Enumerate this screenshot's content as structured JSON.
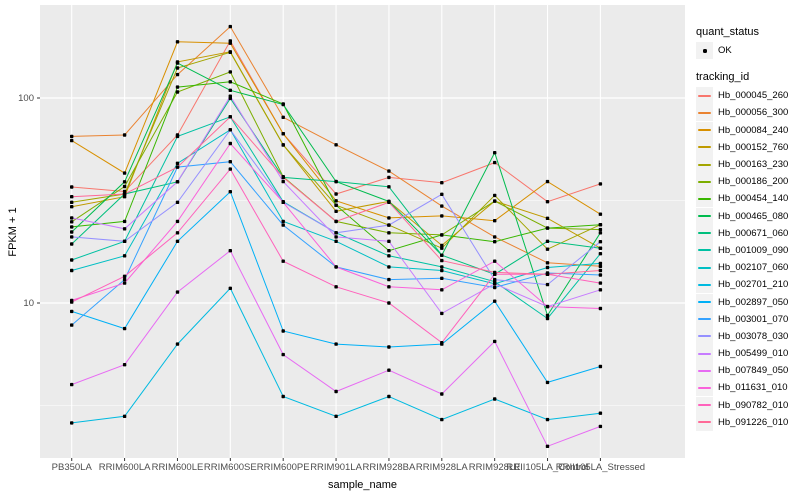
{
  "chart_data": {
    "type": "line",
    "title": "",
    "xlabel": "sample_name",
    "ylabel": "FPKM + 1",
    "y_scale": "log10",
    "y_ticks": [
      100,
      10
    ],
    "y_minor_ticks": [
      31.62,
      3.162
    ],
    "ylim": [
      1.75,
      284
    ],
    "grid": "on",
    "legend_position": "right",
    "categories": [
      "PB350LA",
      "RRIM600LA",
      "RRIM600LE",
      "RRIM600SE",
      "RRIM600PE",
      "RRIM901LA",
      "RRIM928BA",
      "RRIM928LA",
      "RRIM928LE",
      "RRII105LA_Control",
      "RRII105LA_Stressed"
    ],
    "series": [
      {
        "name": "Hb_000045_260",
        "color": "#F8766D",
        "values": [
          36.8,
          35,
          66,
          190,
          67,
          34,
          41,
          38.6,
          48.4,
          31.2,
          38.1
        ]
      },
      {
        "name": "Hb_000056_300",
        "color": "#EA8331",
        "values": [
          65,
          66,
          130,
          223,
          80.5,
          59.1,
          44,
          29.7,
          21,
          15.7,
          15.1
        ]
      },
      {
        "name": "Hb_000084_240",
        "color": "#D89000",
        "values": [
          62,
          43,
          188,
          185,
          67,
          31.5,
          26,
          26.6,
          25.2,
          39.1,
          27.1
        ]
      },
      {
        "name": "Hb_000152_760",
        "color": "#C09B00",
        "values": [
          29.5,
          33,
          150,
          168,
          59.1,
          28,
          31.3,
          19.1,
          31.4,
          25.9,
          18.5
        ]
      },
      {
        "name": "Hb_000163_230",
        "color": "#A3A500",
        "values": [
          31,
          34,
          140,
          167,
          59,
          30,
          24,
          18.5,
          33.5,
          18.3,
          24.1
        ]
      },
      {
        "name": "Hb_000186_200",
        "color": "#7CAE00",
        "values": [
          24.9,
          37,
          107,
          134,
          41.3,
          25,
          22,
          21.5,
          31.4,
          23.2,
          22.8
        ]
      },
      {
        "name": "Hb_000454_140",
        "color": "#39B600",
        "values": [
          23.5,
          25,
          113,
          120,
          93.5,
          30,
          18,
          21.5,
          19.9,
          23.2,
          24.1
        ]
      },
      {
        "name": "Hb_000465_080",
        "color": "#00BB4E",
        "values": [
          22.2,
          39,
          148,
          109,
          93,
          39.1,
          31.3,
          17.1,
          54.1,
          8.7,
          22
        ]
      },
      {
        "name": "Hb_000671_060",
        "color": "#00BF7D",
        "values": [
          19.4,
          34,
          39,
          99.6,
          41,
          39.1,
          36.9,
          17.1,
          13.8,
          20,
          18.5
        ]
      },
      {
        "name": "Hb_001009_090",
        "color": "#00C1A3",
        "values": [
          16.2,
          20,
          65,
          81,
          31.2,
          22,
          17,
          15,
          12.7,
          8.4,
          17.4
        ]
      },
      {
        "name": "Hb_002107_060",
        "color": "#00BFC4",
        "values": [
          14.4,
          17,
          48,
          70,
          25,
          20,
          15,
          14.4,
          12.4,
          14.9,
          15.6
        ]
      },
      {
        "name": "Hb_002701_210",
        "color": "#00BAE0",
        "values": [
          2.6,
          2.8,
          6.3,
          11.8,
          3.5,
          2.8,
          3.5,
          2.7,
          3.4,
          2.7,
          2.9
        ]
      },
      {
        "name": "Hb_002897_050",
        "color": "#00B0F6",
        "values": [
          9.1,
          7.5,
          20,
          34.9,
          7.3,
          6.3,
          6.1,
          6.3,
          10.2,
          4.1,
          4.9
        ]
      },
      {
        "name": "Hb_003001_070",
        "color": "#35A2FF",
        "values": [
          7.8,
          13,
          46,
          48.9,
          24,
          15,
          13,
          13.2,
          11.9,
          14,
          13.7
        ]
      },
      {
        "name": "Hb_003078_030",
        "color": "#9590FF",
        "values": [
          21,
          20,
          31,
          70,
          31,
          22,
          24,
          33.9,
          13,
          12.3,
          19.9
        ]
      },
      {
        "name": "Hb_005499_010",
        "color": "#C77CFF",
        "values": [
          26,
          23,
          39,
          102,
          39.1,
          21,
          20,
          8.9,
          12.4,
          9.6,
          11.6
        ]
      },
      {
        "name": "Hb_007849_050",
        "color": "#E76BF3",
        "values": [
          4.0,
          5.0,
          11.3,
          18.0,
          5.6,
          3.7,
          4.7,
          3.6,
          6.5,
          2.0,
          2.5
        ]
      },
      {
        "name": "Hb_011631_010",
        "color": "#FA62DB",
        "values": [
          10.3,
          12.5,
          25,
          60,
          31,
          15,
          12,
          11.6,
          16,
          9.6,
          9.4
        ]
      },
      {
        "name": "Hb_090782_010",
        "color": "#FF62BC",
        "values": [
          10.1,
          13.5,
          22,
          45,
          16,
          12,
          10,
          6.4,
          13.8,
          13.8,
          12.5
        ]
      },
      {
        "name": "Hb_091226_010",
        "color": "#FF6A98",
        "values": [
          33,
          34,
          46,
          81,
          41,
          25,
          31,
          16.1,
          14.1,
          13.8,
          14.4
        ]
      }
    ]
  },
  "legend": {
    "quant_status_title": "quant_status",
    "quant_status_items": [
      {
        "label": "OK",
        "symbol": "black-point"
      }
    ],
    "tracking_title": "tracking_id"
  },
  "style": {
    "panel_bg": "#EBEBEB",
    "grid_color": "#FFFFFF",
    "tick_color": "#333333",
    "tick_label_color": "#4D4D4D",
    "axis_title_color": "#000000",
    "marker_color": "#000000",
    "legend_key_bg": "#F2F2F2"
  }
}
